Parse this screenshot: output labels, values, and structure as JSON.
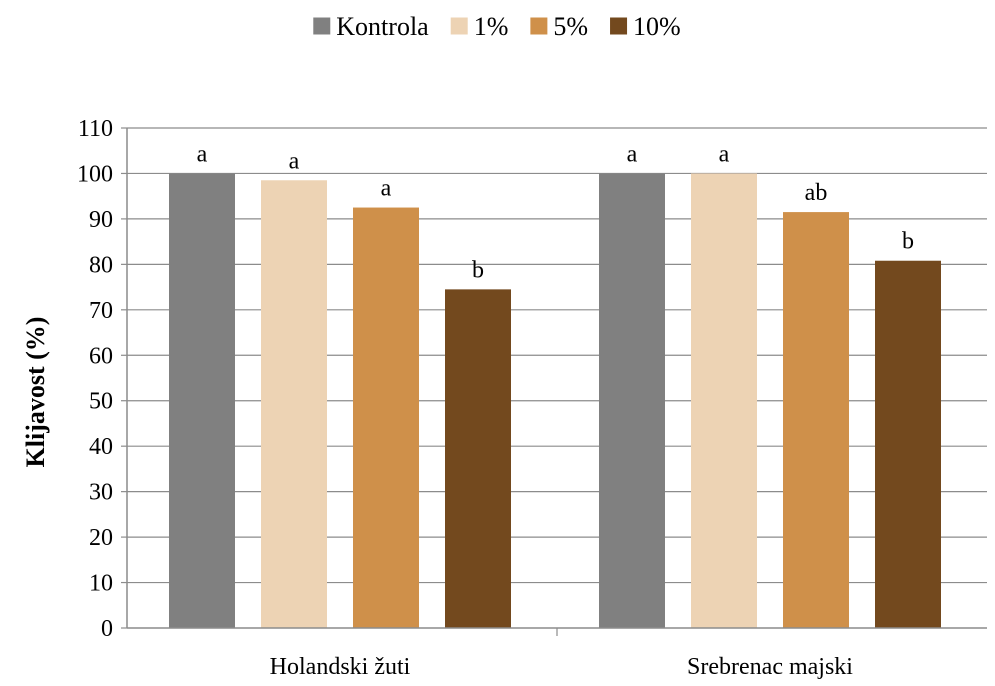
{
  "chart_data": {
    "type": "bar",
    "categories": [
      "Holandski žuti",
      "Srebrenac majski"
    ],
    "series": [
      {
        "name": "Kontrola",
        "color": "#808080",
        "values": [
          100,
          100
        ],
        "labels": [
          "a",
          "a"
        ]
      },
      {
        "name": "1%",
        "color": "#EDD3B4",
        "values": [
          98.5,
          100
        ],
        "labels": [
          "a",
          "a"
        ]
      },
      {
        "name": "5%",
        "color": "#CF904A",
        "values": [
          92.5,
          91.5
        ],
        "labels": [
          "a",
          "ab"
        ]
      },
      {
        "name": "10%",
        "color": "#73491E",
        "values": [
          74.5,
          80.8
        ],
        "labels": [
          "b",
          "b"
        ]
      }
    ],
    "ylabel": "Klijavost (%)",
    "xlabel": "",
    "ylim": [
      0,
      110
    ],
    "yticks": [
      0,
      10,
      20,
      30,
      40,
      50,
      60,
      70,
      80,
      90,
      100,
      110
    ],
    "grid": true,
    "legend_position": "top-center"
  }
}
